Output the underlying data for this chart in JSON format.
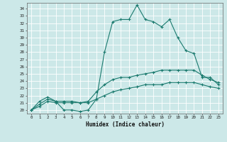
{
  "xlabel": "Humidex (Indice chaleur)",
  "ylabel": "",
  "xlim": [
    -0.5,
    23.5
  ],
  "ylim": [
    19.5,
    34.8
  ],
  "xticks": [
    0,
    1,
    2,
    3,
    4,
    5,
    6,
    7,
    8,
    9,
    10,
    11,
    12,
    13,
    14,
    15,
    16,
    17,
    18,
    19,
    20,
    21,
    22,
    23
  ],
  "yticks": [
    20,
    21,
    22,
    23,
    24,
    25,
    26,
    27,
    28,
    29,
    30,
    31,
    32,
    33,
    34
  ],
  "line_color": "#1a7a6e",
  "bg_color": "#cce8e8",
  "grid_color": "#ffffff",
  "series": {
    "max": [
      20.0,
      21.2,
      21.8,
      21.2,
      20.0,
      20.0,
      19.8,
      20.0,
      21.5,
      28.0,
      32.2,
      32.5,
      32.5,
      34.5,
      32.5,
      32.2,
      31.5,
      32.5,
      30.0,
      28.2,
      27.8,
      24.5,
      24.5,
      23.5
    ],
    "avg": [
      20.0,
      20.8,
      21.5,
      21.2,
      21.2,
      21.2,
      21.0,
      21.2,
      22.5,
      23.5,
      24.2,
      24.5,
      24.5,
      24.8,
      25.0,
      25.2,
      25.5,
      25.5,
      25.5,
      25.5,
      25.5,
      24.8,
      24.2,
      23.8
    ],
    "min": [
      20.0,
      20.5,
      21.2,
      21.0,
      21.0,
      21.0,
      21.0,
      21.0,
      21.5,
      22.0,
      22.5,
      22.8,
      23.0,
      23.2,
      23.5,
      23.5,
      23.5,
      23.8,
      23.8,
      23.8,
      23.8,
      23.5,
      23.2,
      23.0
    ]
  }
}
